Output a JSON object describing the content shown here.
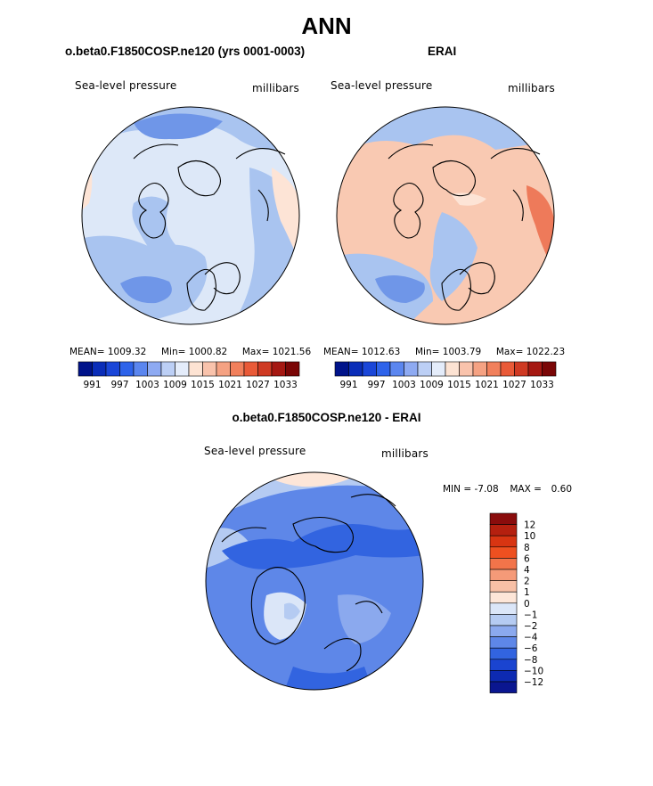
{
  "main_title": "ANN",
  "colors": {
    "ocean_low": "#6f96e8",
    "ocean_mid": "#a9c4f0",
    "ocean_pale": "#dde8f8",
    "warm_pale": "#fde4d6",
    "warm_mid": "#f6b59a",
    "warm_high": "#ee7a5a",
    "coast": "#000000"
  },
  "chart_data": [
    {
      "type": "contour-map",
      "projection": "north polar stereographic",
      "title": "o.beta0.F1850COSP.ne120 (yrs 0001-0003)",
      "variable": "Sea-level pressure",
      "units": "millibars",
      "stats": {
        "mean_label": "MEAN=",
        "mean": "1009.32",
        "min_label": "Min=",
        "min": "1000.82",
        "max_label": "Max=",
        "max": "1021.56"
      },
      "colorbar": {
        "orientation": "horizontal",
        "tick_labels": [
          "991",
          "997",
          "1003",
          "1009",
          "1015",
          "1021",
          "1027",
          "1033"
        ],
        "levels": [
          991,
          994,
          997,
          1000,
          1003,
          1006,
          1009,
          1012,
          1015,
          1018,
          1021,
          1024,
          1027,
          1030,
          1033
        ],
        "colors": [
          "#00138a",
          "#0a2db8",
          "#1a46d8",
          "#2e63ea",
          "#5b86ef",
          "#8eaaf2",
          "#bccff5",
          "#e4ecfa",
          "#fde3d3",
          "#f9c3ac",
          "#f5a283",
          "#f1805c",
          "#e95a38",
          "#cf3a23",
          "#a51812",
          "#7a0606"
        ]
      }
    },
    {
      "type": "contour-map",
      "projection": "north polar stereographic",
      "title": "ERAI",
      "variable": "Sea-level pressure",
      "units": "millibars",
      "stats": {
        "mean_label": "MEAN=",
        "mean": "1012.63",
        "min_label": "Min=",
        "min": "1003.79",
        "max_label": "Max=",
        "max": "1022.23"
      },
      "colorbar": {
        "orientation": "horizontal",
        "tick_labels": [
          "991",
          "997",
          "1003",
          "1009",
          "1015",
          "1021",
          "1027",
          "1033"
        ],
        "levels": [
          991,
          994,
          997,
          1000,
          1003,
          1006,
          1009,
          1012,
          1015,
          1018,
          1021,
          1024,
          1027,
          1030,
          1033
        ],
        "colors": [
          "#00138a",
          "#0a2db8",
          "#1a46d8",
          "#2e63ea",
          "#5b86ef",
          "#8eaaf2",
          "#bccff5",
          "#e4ecfa",
          "#fde3d3",
          "#f9c3ac",
          "#f5a283",
          "#f1805c",
          "#e95a38",
          "#cf3a23",
          "#a51812",
          "#7a0606"
        ]
      }
    },
    {
      "type": "contour-map",
      "projection": "north polar stereographic",
      "title": "o.beta0.F1850COSP.ne120 - ERAI",
      "variable": "Sea-level pressure",
      "units": "millibars",
      "stats": {
        "min_label": "MIN =",
        "min": "-7.08",
        "max_label": "MAX =",
        "max": "0.60"
      },
      "colorbar": {
        "orientation": "vertical",
        "tick_labels": [
          "12",
          "10",
          "8",
          "6",
          "4",
          "2",
          "1",
          "0",
          "−1",
          "−2",
          "−4",
          "−6",
          "−8",
          "−10",
          "−12"
        ],
        "colors": [
          "#8a0c0c",
          "#b5200f",
          "#d83512",
          "#ee5020",
          "#f2744a",
          "#f59a78",
          "#f8c0a6",
          "#fde6d8",
          "#dbe6f8",
          "#b5cbf2",
          "#8ba9ee",
          "#5e87e8",
          "#3264e0",
          "#1a44d0",
          "#0d2ab2",
          "#0a1690"
        ]
      }
    }
  ]
}
